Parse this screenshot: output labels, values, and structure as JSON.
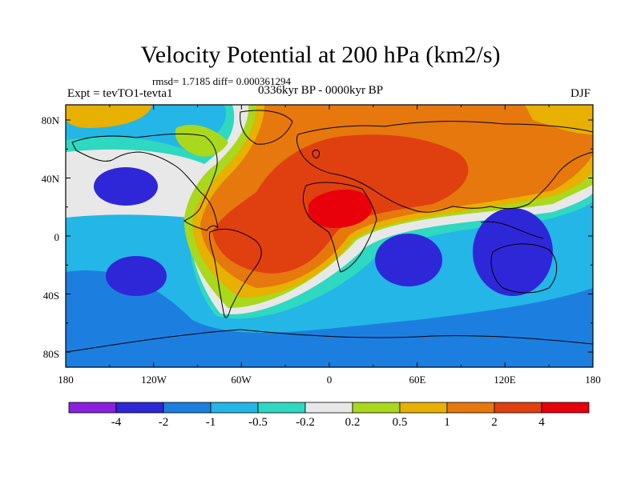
{
  "title": "Velocity Potential at 200 hPa (km2/s)",
  "stats": "rmsd= 1.7185 diff= 0.000361294",
  "experiment": "Expt = tevTO1-tevta1",
  "period": "0336kyr BP - 0000kyr BP",
  "season": "DJF",
  "lat_labels": [
    "80N",
    "40N",
    "0",
    "40S",
    "80S"
  ],
  "lon_labels": [
    "180",
    "120W",
    "60W",
    "0",
    "60E",
    "120E",
    "180"
  ],
  "colorbar": {
    "levels": [
      "-4",
      "-2",
      "-1",
      "-0.5",
      "-0.2",
      "0.2",
      "0.5",
      "1",
      "2",
      "4"
    ],
    "colors": [
      "#8a1fe0",
      "#2e27d8",
      "#1c7fe0",
      "#23b6e6",
      "#2fd8c0",
      "#e8e8e8",
      "#a9d81c",
      "#e8b000",
      "#e6780e",
      "#e04010",
      "#e8000b"
    ]
  },
  "fields": {
    "background": "#23b6e6",
    "colors": {
      "light_blue": "#23b6e6",
      "mid_blue": "#1c7fe0",
      "dark_blue": "#2e27d8",
      "teal": "#2fd8c0",
      "white": "#e8e8e8",
      "yellow_green": "#a9d81c",
      "gold": "#e8b000",
      "orange": "#e6780e",
      "red_orange": "#e04010",
      "red": "#e8000b"
    }
  }
}
